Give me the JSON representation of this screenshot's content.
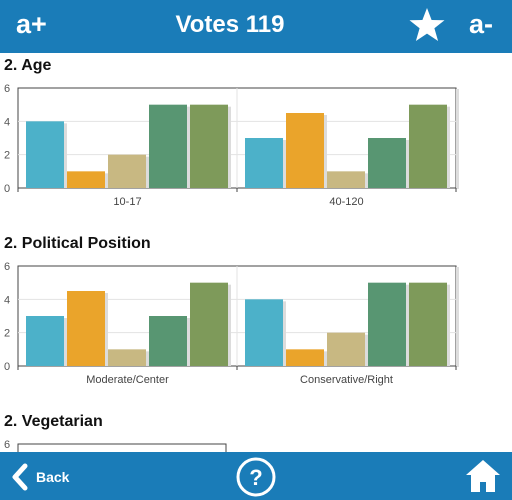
{
  "header": {
    "zoom_in_label": "a+",
    "title": "Votes 119",
    "zoom_out_label": "a-",
    "favorite_icon": "star-icon"
  },
  "colors": {
    "bar": [
      "#4cb1c9",
      "#eaa42b",
      "#c8b882",
      "#589672",
      "#7e9a5a"
    ],
    "accent": "#1a7cb8"
  },
  "sections": [
    {
      "title": "2. Age"
    },
    {
      "title": "2. Political Position"
    },
    {
      "title": "2. Vegetarian"
    }
  ],
  "chart_data": [
    {
      "type": "bar",
      "title": "2. Age",
      "categories": [
        "10-17",
        "40-120"
      ],
      "ylim": [
        0,
        6
      ],
      "yticks": [
        "0",
        "2",
        "4",
        "6"
      ],
      "series": [
        {
          "values": [
            4,
            3
          ]
        },
        {
          "values": [
            1,
            4.5
          ]
        },
        {
          "values": [
            2,
            1
          ]
        },
        {
          "values": [
            5,
            3
          ]
        },
        {
          "values": [
            5,
            5
          ]
        }
      ]
    },
    {
      "type": "bar",
      "title": "2. Political Position",
      "categories": [
        "Moderate/Center",
        "Conservative/Right"
      ],
      "ylim": [
        0,
        6
      ],
      "yticks": [
        "0",
        "2",
        "4",
        "6"
      ],
      "series": [
        {
          "values": [
            3,
            4
          ]
        },
        {
          "values": [
            4.5,
            1
          ]
        },
        {
          "values": [
            1,
            2
          ]
        },
        {
          "values": [
            3,
            5
          ]
        },
        {
          "values": [
            5,
            5
          ]
        }
      ]
    },
    {
      "type": "bar",
      "title": "2. Vegetarian",
      "categories": [],
      "ylim": [
        0,
        6
      ],
      "yticks": [
        "6"
      ],
      "series": []
    }
  ],
  "footer": {
    "back_label": "Back",
    "help_label": "?",
    "home_icon": "home-icon"
  }
}
